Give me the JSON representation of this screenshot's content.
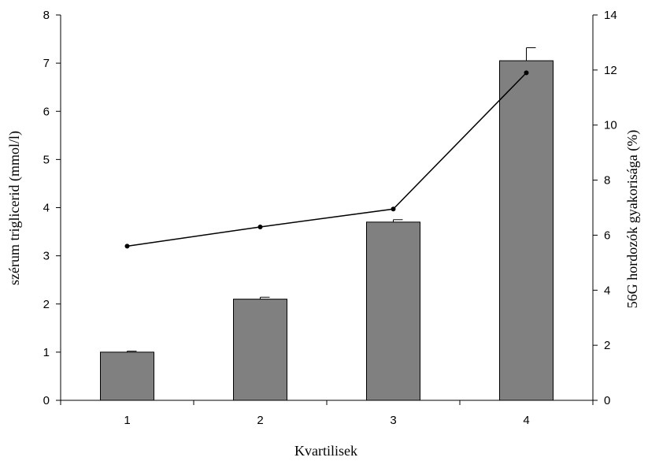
{
  "chart_data": {
    "type": "bar",
    "categories": [
      "1",
      "2",
      "3",
      "4"
    ],
    "series": [
      {
        "kind": "bar",
        "axis": "left",
        "values": [
          1.0,
          2.1,
          3.7,
          7.05
        ],
        "error": [
          0.02,
          0.04,
          0.05,
          0.27
        ],
        "color": "#808080"
      },
      {
        "kind": "line",
        "axis": "right",
        "values": [
          5.6,
          6.3,
          6.95,
          11.9
        ],
        "color": "#000000"
      }
    ],
    "xlabel": "Kvartilisek",
    "ylabel": "szérum triglicerid (mmol/l)",
    "y2label": "56G hordozók gyakorisága (%)",
    "ylim": [
      0,
      8
    ],
    "y2lim": [
      0,
      14
    ],
    "yticks": [
      "0",
      "1",
      "2",
      "3",
      "4",
      "5",
      "6",
      "7",
      "8"
    ],
    "y2ticks": [
      "0",
      "2",
      "4",
      "6",
      "8",
      "10",
      "12",
      "14"
    ],
    "grid": false,
    "legend": "none"
  }
}
